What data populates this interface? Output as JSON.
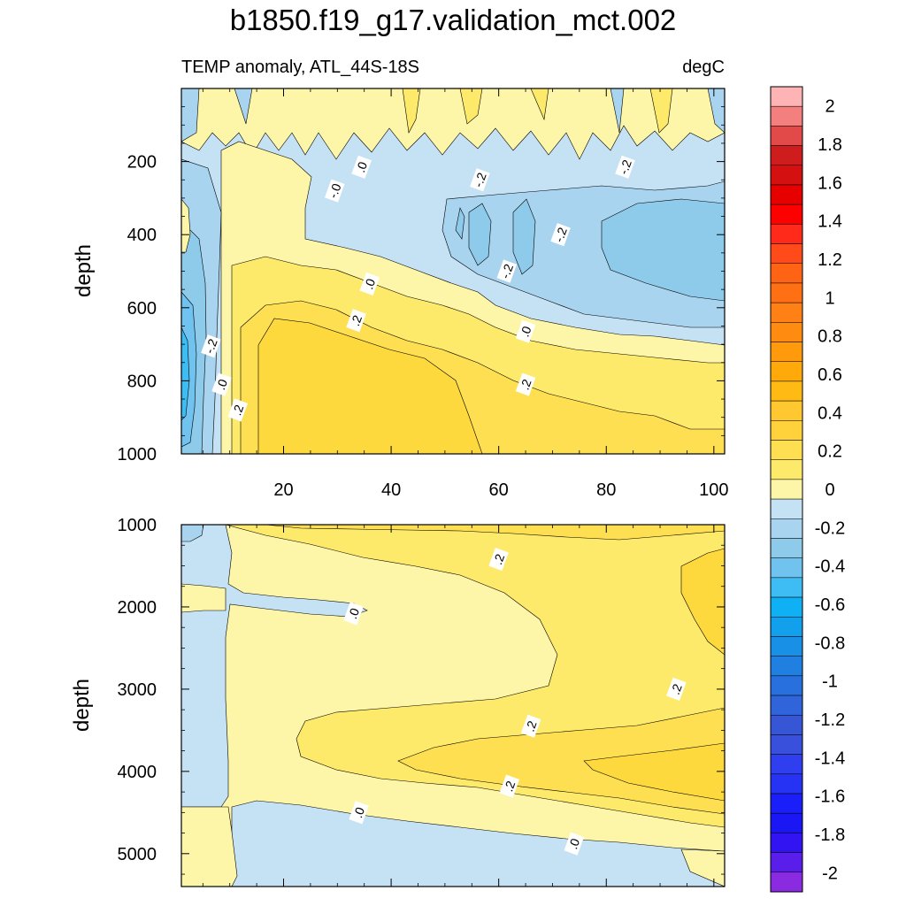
{
  "title": "b1850.f19_g17.validation_mct.002",
  "chart_data": {
    "type": "heatmap",
    "subtitle": "TEMP anomaly, ATL_44S-18S",
    "units": "degC",
    "ylabel": "depth",
    "x_ticks": [
      20,
      40,
      60,
      80,
      100
    ],
    "xlim": [
      1,
      102
    ],
    "panels": [
      {
        "name": "upper",
        "ylim": [
          0,
          1000
        ],
        "y_inverted": true,
        "y_ticks": [
          200,
          400,
          600,
          800,
          1000
        ]
      },
      {
        "name": "lower",
        "ylim": [
          1000,
          5400
        ],
        "y_inverted": true,
        "y_ticks": [
          1000,
          2000,
          3000,
          4000,
          5000
        ]
      }
    ],
    "contour_labels": {
      "upper": [
        {
          "text": ".0",
          "x": 34.5,
          "y": 215
        },
        {
          "text": "-.0",
          "x": 29.5,
          "y": 280
        },
        {
          "text": "-.2",
          "x": 56.5,
          "y": 250
        },
        {
          "text": "-.2",
          "x": 83.5,
          "y": 215
        },
        {
          "text": "-.2",
          "x": 71.5,
          "y": 400
        },
        {
          "text": "-.2",
          "x": 61.5,
          "y": 500
        },
        {
          "text": ".0",
          "x": 36,
          "y": 535
        },
        {
          "text": ".2",
          "x": 33.5,
          "y": 635
        },
        {
          "text": ".0",
          "x": 65,
          "y": 665
        },
        {
          "text": ".2",
          "x": 65,
          "y": 810
        },
        {
          "text": "-.2",
          "x": 6.5,
          "y": 705
        },
        {
          "text": ".0",
          "x": 8.5,
          "y": 810
        },
        {
          "text": ".2",
          "x": 11.5,
          "y": 880
        }
      ],
      "lower": [
        {
          "text": ".2",
          "x": 60,
          "y": 1420
        },
        {
          "text": ".0",
          "x": 33,
          "y": 2080
        },
        {
          "text": ".2",
          "x": 93,
          "y": 3000
        },
        {
          "text": ".2",
          "x": 66,
          "y": 3450
        },
        {
          "text": ".2",
          "x": 62,
          "y": 4180
        },
        {
          "text": ".0",
          "x": 34,
          "y": 4500
        },
        {
          "text": ".0",
          "x": 74,
          "y": 4880
        }
      ]
    },
    "colorbar": {
      "min": -2.1,
      "max": 2.1,
      "step": 0.1,
      "tick_labels": [
        "2",
        "1.8",
        "1.6",
        "1.4",
        "1.2",
        "1",
        "0.8",
        "0.6",
        "0.4",
        "0.2",
        "0",
        "-0.2",
        "-0.4",
        "-0.6",
        "-0.8",
        "-1",
        "-1.2",
        "-1.4",
        "-1.6",
        "-1.8",
        "-2"
      ],
      "tick_values": [
        2,
        1.8,
        1.6,
        1.4,
        1.2,
        1,
        0.8,
        0.6,
        0.4,
        0.2,
        0,
        -0.2,
        -0.4,
        -0.6,
        -0.8,
        -1,
        -1.2,
        -1.4,
        -1.6,
        -1.8,
        -2
      ],
      "colors_top_to_bottom": [
        "#feb4b4",
        "#f47f7f",
        "#e24a4a",
        "#cf1d1d",
        "#d41010",
        "#e60000",
        "#ff0000",
        "#ff2a1a",
        "#ff4a1a",
        "#ff6414",
        "#ff7014",
        "#ff8014",
        "#ff8c10",
        "#ff9a0d",
        "#ffaa0a",
        "#ffbb14",
        "#ffc830",
        "#ffd23c",
        "#fedf52",
        "#fde96a",
        "#fdf6a8",
        "#c5e1f4",
        "#a9d4f0",
        "#8ecbeb",
        "#70c2ef",
        "#3ebdf5",
        "#10b0f5",
        "#12a0ec",
        "#1890e6",
        "#2080e2",
        "#2870de",
        "#3064db",
        "#3656d6",
        "#3850dc",
        "#2f3eee",
        "#2633f4",
        "#1a1ef8",
        "#1a16f4",
        "#3214f2",
        "#5a1eea",
        "#8a2be2"
      ]
    }
  }
}
